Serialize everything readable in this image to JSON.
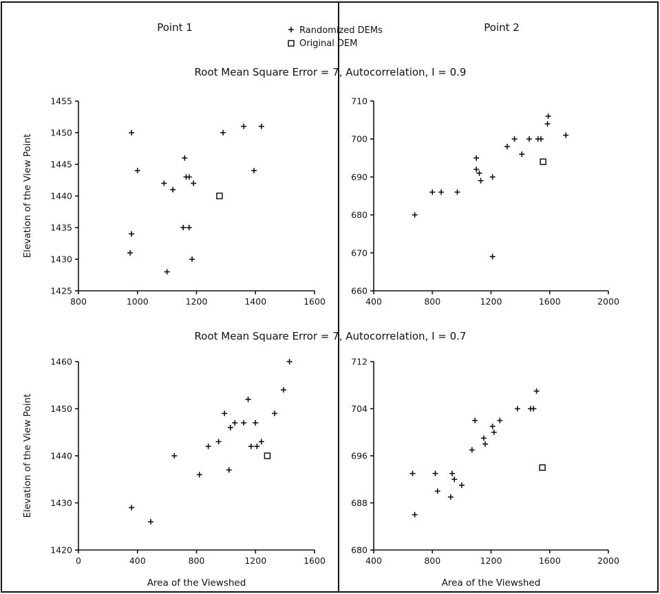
{
  "header": {
    "left_title": "Point 1",
    "right_title": "Point 2"
  },
  "legend": {
    "entries": [
      {
        "symbol": "plus",
        "label": "Randomized DEMs"
      },
      {
        "symbol": "square",
        "label": "Original DEM"
      }
    ]
  },
  "rows": [
    {
      "title": "Root Mean Square Error = 7,  Autocorrelation, I = 0.9"
    },
    {
      "title": "Root Mean Square Error = 7,  Autocorrelation, I = 0.7"
    }
  ],
  "chart_data": [
    {
      "type": "scatter",
      "title": "",
      "xlabel": "",
      "ylabel": "Elevation of the View Point",
      "xlim": [
        800,
        1600
      ],
      "ylim": [
        1425,
        1455
      ],
      "xticks": [
        800,
        1000,
        1200,
        1400,
        1600
      ],
      "yticks": [
        1425,
        1430,
        1435,
        1440,
        1445,
        1450,
        1455
      ],
      "series": [
        {
          "name": "Randomized DEMs",
          "marker": "plus",
          "points": [
            [
              980,
              1450
            ],
            [
              1000,
              1444
            ],
            [
              1090,
              1442
            ],
            [
              1120,
              1441
            ],
            [
              1160,
              1446
            ],
            [
              1165,
              1443
            ],
            [
              1175,
              1443
            ],
            [
              1190,
              1442
            ],
            [
              1290,
              1450
            ],
            [
              1360,
              1451
            ],
            [
              1420,
              1451
            ],
            [
              1395,
              1444
            ],
            [
              980,
              1434
            ],
            [
              975,
              1431
            ],
            [
              1155,
              1435
            ],
            [
              1175,
              1435
            ],
            [
              1185,
              1430
            ],
            [
              1100,
              1428
            ]
          ]
        },
        {
          "name": "Original DEM",
          "marker": "square",
          "points": [
            [
              1278,
              1440
            ]
          ]
        }
      ]
    },
    {
      "type": "scatter",
      "title": "",
      "xlabel": "",
      "ylabel": "",
      "xlim": [
        400,
        2000
      ],
      "ylim": [
        660,
        710
      ],
      "xticks": [
        400,
        800,
        1200,
        1600,
        2000
      ],
      "yticks": [
        660,
        670,
        680,
        690,
        700,
        710
      ],
      "series": [
        {
          "name": "Randomized DEMs",
          "marker": "plus",
          "points": [
            [
              680,
              680
            ],
            [
              800,
              686
            ],
            [
              860,
              686
            ],
            [
              970,
              686
            ],
            [
              1100,
              695
            ],
            [
              1100,
              692
            ],
            [
              1120,
              691
            ],
            [
              1130,
              689
            ],
            [
              1210,
              690
            ],
            [
              1310,
              698
            ],
            [
              1360,
              700
            ],
            [
              1410,
              696
            ],
            [
              1460,
              700
            ],
            [
              1520,
              700
            ],
            [
              1540,
              700
            ],
            [
              1590,
              706
            ],
            [
              1585,
              704
            ],
            [
              1710,
              701
            ],
            [
              1210,
              669
            ]
          ]
        },
        {
          "name": "Original DEM",
          "marker": "square",
          "points": [
            [
              1555,
              694
            ]
          ]
        }
      ]
    },
    {
      "type": "scatter",
      "title": "",
      "xlabel": "Area of the Viewshed",
      "ylabel": "Elevation of the View Point",
      "xlim": [
        0,
        1600
      ],
      "ylim": [
        1420,
        1460
      ],
      "xticks": [
        0,
        400,
        800,
        1200,
        1600
      ],
      "yticks": [
        1420,
        1430,
        1440,
        1450,
        1460
      ],
      "series": [
        {
          "name": "Randomized DEMs",
          "marker": "plus",
          "points": [
            [
              360,
              1429
            ],
            [
              490,
              1426
            ],
            [
              650,
              1440
            ],
            [
              820,
              1436
            ],
            [
              880,
              1442
            ],
            [
              950,
              1443
            ],
            [
              990,
              1449
            ],
            [
              1030,
              1446
            ],
            [
              1060,
              1447
            ],
            [
              1120,
              1447
            ],
            [
              1150,
              1452
            ],
            [
              1170,
              1442
            ],
            [
              1200,
              1447
            ],
            [
              1210,
              1442
            ],
            [
              1240,
              1443
            ],
            [
              1020,
              1437
            ],
            [
              1330,
              1449
            ],
            [
              1390,
              1454
            ],
            [
              1430,
              1460
            ]
          ]
        },
        {
          "name": "Original DEM",
          "marker": "square",
          "points": [
            [
              1280,
              1440
            ]
          ]
        }
      ]
    },
    {
      "type": "scatter",
      "title": "",
      "xlabel": "Area of the Viewshed",
      "ylabel": "",
      "xlim": [
        400,
        2000
      ],
      "ylim": [
        680,
        712
      ],
      "xticks": [
        400,
        800,
        1200,
        1600,
        2000
      ],
      "yticks": [
        680,
        688,
        696,
        704,
        712
      ],
      "series": [
        {
          "name": "Randomized DEMs",
          "marker": "plus",
          "points": [
            [
              665,
              693
            ],
            [
              680,
              686
            ],
            [
              820,
              693
            ],
            [
              835,
              690
            ],
            [
              925,
              689
            ],
            [
              935,
              693
            ],
            [
              950,
              692
            ],
            [
              1000,
              691
            ],
            [
              1070,
              697
            ],
            [
              1090,
              702
            ],
            [
              1150,
              699
            ],
            [
              1160,
              698
            ],
            [
              1210,
              701
            ],
            [
              1220,
              700
            ],
            [
              1260,
              702
            ],
            [
              1380,
              704
            ],
            [
              1470,
              704
            ],
            [
              1490,
              704
            ],
            [
              1510,
              707
            ]
          ]
        },
        {
          "name": "Original DEM",
          "marker": "square",
          "points": [
            [
              1550,
              694
            ]
          ]
        }
      ]
    }
  ]
}
